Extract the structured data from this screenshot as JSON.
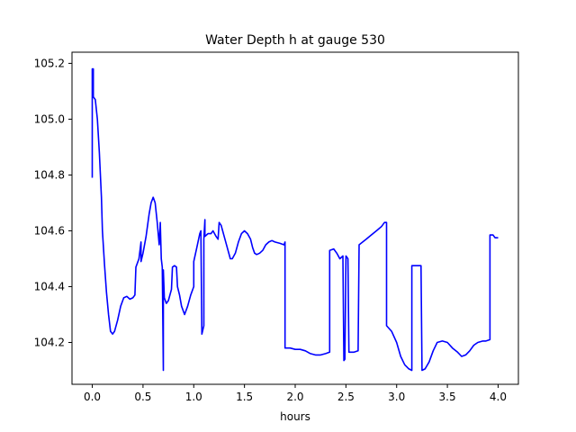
{
  "chart_data": {
    "type": "line",
    "title": "Water Depth h at gauge 530",
    "xlabel": "hours",
    "ylabel": "",
    "xlim": [
      -0.2,
      4.2
    ],
    "ylim": [
      104.05,
      105.24
    ],
    "xticks": [
      0.0,
      0.5,
      1.0,
      1.5,
      2.0,
      2.5,
      3.0,
      3.5,
      4.0
    ],
    "xtick_labels": [
      "0.0",
      "0.5",
      "1.0",
      "1.5",
      "2.0",
      "2.5",
      "3.0",
      "3.5",
      "4.0"
    ],
    "yticks": [
      104.2,
      104.4,
      104.6,
      104.8,
      105.0,
      105.2
    ],
    "ytick_labels": [
      "104.2",
      "104.4",
      "104.6",
      "104.8",
      "105.0",
      "105.2"
    ],
    "grid": false,
    "series": [
      {
        "color": "#0000ff",
        "points": [
          [
            0.0,
            104.79
          ],
          [
            0.0,
            105.18
          ],
          [
            0.01,
            105.18
          ],
          [
            0.01,
            105.08
          ],
          [
            0.03,
            105.07
          ],
          [
            0.05,
            105.0
          ],
          [
            0.07,
            104.88
          ],
          [
            0.09,
            104.72
          ],
          [
            0.1,
            104.6
          ],
          [
            0.12,
            104.48
          ],
          [
            0.14,
            104.38
          ],
          [
            0.16,
            104.3
          ],
          [
            0.18,
            104.24
          ],
          [
            0.2,
            104.23
          ],
          [
            0.22,
            104.24
          ],
          [
            0.25,
            104.28
          ],
          [
            0.28,
            104.33
          ],
          [
            0.31,
            104.36
          ],
          [
            0.34,
            104.365
          ],
          [
            0.37,
            104.355
          ],
          [
            0.4,
            104.36
          ],
          [
            0.42,
            104.37
          ],
          [
            0.43,
            104.47
          ],
          [
            0.46,
            104.5
          ],
          [
            0.48,
            104.56
          ],
          [
            0.48,
            104.49
          ],
          [
            0.5,
            104.52
          ],
          [
            0.53,
            104.58
          ],
          [
            0.56,
            104.66
          ],
          [
            0.58,
            104.7
          ],
          [
            0.6,
            104.72
          ],
          [
            0.62,
            104.7
          ],
          [
            0.64,
            104.63
          ],
          [
            0.66,
            104.55
          ],
          [
            0.67,
            104.63
          ],
          [
            0.68,
            104.5
          ],
          [
            0.69,
            104.47
          ],
          [
            0.7,
            104.1
          ],
          [
            0.7,
            104.46
          ],
          [
            0.71,
            104.36
          ],
          [
            0.73,
            104.34
          ],
          [
            0.75,
            104.35
          ],
          [
            0.78,
            104.39
          ],
          [
            0.79,
            104.47
          ],
          [
            0.81,
            104.475
          ],
          [
            0.83,
            104.47
          ],
          [
            0.84,
            104.4
          ],
          [
            0.86,
            104.37
          ],
          [
            0.88,
            104.33
          ],
          [
            0.91,
            104.3
          ],
          [
            0.94,
            104.33
          ],
          [
            0.97,
            104.37
          ],
          [
            1.0,
            104.4
          ],
          [
            1.0,
            104.49
          ],
          [
            1.03,
            104.54
          ],
          [
            1.06,
            104.59
          ],
          [
            1.07,
            104.6
          ],
          [
            1.08,
            104.23
          ],
          [
            1.1,
            104.26
          ],
          [
            1.1,
            104.57
          ],
          [
            1.11,
            104.64
          ],
          [
            1.11,
            104.58
          ],
          [
            1.14,
            104.59
          ],
          [
            1.17,
            104.59
          ],
          [
            1.19,
            104.6
          ],
          [
            1.22,
            104.58
          ],
          [
            1.24,
            104.57
          ],
          [
            1.25,
            104.63
          ],
          [
            1.27,
            104.62
          ],
          [
            1.3,
            104.58
          ],
          [
            1.33,
            104.54
          ],
          [
            1.36,
            104.5
          ],
          [
            1.38,
            104.5
          ],
          [
            1.41,
            104.52
          ],
          [
            1.44,
            104.56
          ],
          [
            1.47,
            104.59
          ],
          [
            1.5,
            104.6
          ],
          [
            1.53,
            104.59
          ],
          [
            1.56,
            104.57
          ],
          [
            1.58,
            104.54
          ],
          [
            1.6,
            104.52
          ],
          [
            1.62,
            104.515
          ],
          [
            1.65,
            104.52
          ],
          [
            1.68,
            104.53
          ],
          [
            1.71,
            104.55
          ],
          [
            1.74,
            104.56
          ],
          [
            1.77,
            104.565
          ],
          [
            1.8,
            104.56
          ],
          [
            1.85,
            104.555
          ],
          [
            1.89,
            104.55
          ],
          [
            1.9,
            104.56
          ],
          [
            1.9,
            104.18
          ],
          [
            1.95,
            104.18
          ],
          [
            2.0,
            104.175
          ],
          [
            2.05,
            104.175
          ],
          [
            2.1,
            104.17
          ],
          [
            2.15,
            104.16
          ],
          [
            2.2,
            104.155
          ],
          [
            2.25,
            104.155
          ],
          [
            2.3,
            104.16
          ],
          [
            2.34,
            104.165
          ],
          [
            2.34,
            104.53
          ],
          [
            2.38,
            104.535
          ],
          [
            2.41,
            104.52
          ],
          [
            2.44,
            104.5
          ],
          [
            2.47,
            104.51
          ],
          [
            2.48,
            104.135
          ],
          [
            2.49,
            104.14
          ],
          [
            2.5,
            104.51
          ],
          [
            2.52,
            104.5
          ],
          [
            2.53,
            104.165
          ],
          [
            2.58,
            104.165
          ],
          [
            2.62,
            104.17
          ],
          [
            2.63,
            104.55
          ],
          [
            2.7,
            104.57
          ],
          [
            2.75,
            104.585
          ],
          [
            2.8,
            104.6
          ],
          [
            2.85,
            104.615
          ],
          [
            2.88,
            104.63
          ],
          [
            2.9,
            104.63
          ],
          [
            2.9,
            104.26
          ],
          [
            2.95,
            104.24
          ],
          [
            3.0,
            104.2
          ],
          [
            3.04,
            104.15
          ],
          [
            3.08,
            104.12
          ],
          [
            3.12,
            104.105
          ],
          [
            3.15,
            104.1
          ],
          [
            3.15,
            104.475
          ],
          [
            3.2,
            104.475
          ],
          [
            3.24,
            104.475
          ],
          [
            3.25,
            104.1
          ],
          [
            3.28,
            104.105
          ],
          [
            3.32,
            104.13
          ],
          [
            3.36,
            104.17
          ],
          [
            3.4,
            104.2
          ],
          [
            3.45,
            104.205
          ],
          [
            3.5,
            104.2
          ],
          [
            3.55,
            104.18
          ],
          [
            3.6,
            104.165
          ],
          [
            3.64,
            104.15
          ],
          [
            3.68,
            104.155
          ],
          [
            3.72,
            104.17
          ],
          [
            3.76,
            104.19
          ],
          [
            3.8,
            104.2
          ],
          [
            3.85,
            104.205
          ],
          [
            3.88,
            104.205
          ],
          [
            3.92,
            104.21
          ],
          [
            3.92,
            104.585
          ],
          [
            3.95,
            104.585
          ],
          [
            3.97,
            104.575
          ],
          [
            4.0,
            104.575
          ]
        ]
      }
    ]
  }
}
